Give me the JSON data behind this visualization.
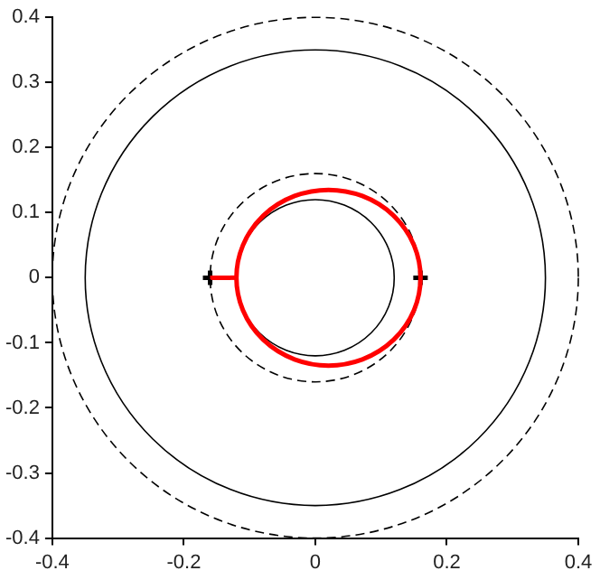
{
  "chart_data": {
    "type": "line",
    "xlim": [
      -0.4,
      0.4
    ],
    "ylim": [
      -0.4,
      0.4
    ],
    "xticks": [
      -0.4,
      -0.2,
      0,
      0.2,
      0.4
    ],
    "yticks": [
      -0.4,
      -0.3,
      -0.2,
      -0.1,
      0,
      0.1,
      0.2,
      0.3,
      0.4
    ],
    "grid": false,
    "series": [
      {
        "color": "#ff0000",
        "line_style": "solid",
        "x": [
          -0.16,
          -0.12
        ],
        "values": [
          0,
          0
        ]
      },
      {
        "type": "scatter",
        "color": "#000000",
        "marker": "cross",
        "x": [
          -0.16,
          0.16
        ],
        "values": [
          0,
          0
        ]
      }
    ]
  }
}
